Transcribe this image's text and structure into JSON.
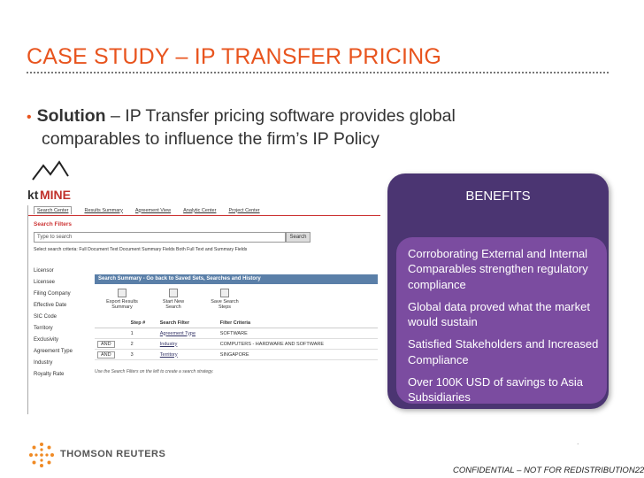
{
  "slide": {
    "title": "CASE STUDY – IP TRANSFER PRICING",
    "bullet_bold": "Solution",
    "bullet_rest": " – IP Transfer pricing software provides global",
    "bullet_line2": "comparables to influence the firm’s IP Policy"
  },
  "ktmine": {
    "logo_kt": "kt",
    "logo_mine": "MINE",
    "tabs": [
      "Search Center",
      "Results Summary",
      "Agreement View",
      "Analytic Center",
      "Project Center"
    ],
    "filters_title": "Search Filters",
    "search_placeholder": "Type to search",
    "search_button": "Search",
    "radio_row": "Select search criteria:   Full Document Text    Document Summary Fields    Both Full Text and Summary Fields",
    "side_items": [
      "Licensor",
      "Licensee",
      "Filing Company",
      "Effective Date",
      "SIC Code",
      "Territory",
      "Exclusivity",
      "Agreement Type",
      "Industry",
      "Royalty Rate"
    ],
    "summary_header": "Search Summary - Go back to Saved Sets, Searches and History",
    "summary_buttons": [
      "Export Results Summary",
      "Start New Search",
      "Save Search Steps"
    ],
    "grid_headers": [
      "",
      "Step #",
      "Search Filter",
      "Filter Criteria"
    ],
    "grid_rows": [
      {
        "op": "",
        "step": "1",
        "filter": "Agreement Type",
        "criteria": "SOFTWARE"
      },
      {
        "op": "AND",
        "step": "2",
        "filter": "Industry",
        "criteria": "COMPUTERS - HARDWARE AND SOFTWARE"
      },
      {
        "op": "AND",
        "step": "3",
        "filter": "Territory",
        "criteria": "SINGAPORE"
      }
    ],
    "hint": "Use the Search Filters on the left to create a search strategy."
  },
  "benefits": {
    "heading": "BENEFITS",
    "items": [
      "Corroborating External and Internal Comparables strengthen regulatory compliance",
      "Global data proved what the market would sustain",
      "Satisfied Stakeholders and Increased Compliance",
      "Over 100K USD of savings to Asia Subsidiaries"
    ]
  },
  "footer": {
    "brand": "THOMSON REUTERS",
    "confidential": "CONFIDENTIAL – NOT FOR REDISTRIBUTION",
    "page_number": "22",
    "dot": "."
  },
  "colors": {
    "title": "#e8541e",
    "panel_dark": "#4b3572",
    "panel_light": "#7b4ca0",
    "tr_orange": "#f08a24"
  }
}
